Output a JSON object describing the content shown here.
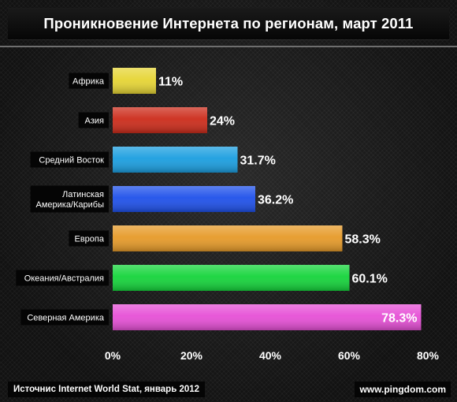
{
  "chart_data": {
    "type": "bar",
    "orientation": "horizontal",
    "title": "Проникновение Интернета по регионам, март 2011",
    "categories": [
      "Африка",
      "Азия",
      "Средний Восток",
      "Латинская Америка/Карибы",
      "Европа",
      "Океания/Австралия",
      "Северная Америка"
    ],
    "category_lines": [
      [
        "Африка"
      ],
      [
        "Азия"
      ],
      [
        "Средний Восток"
      ],
      [
        "Латинская",
        "Америка/Карибы"
      ],
      [
        "Европа"
      ],
      [
        "Океания/Австралия"
      ],
      [
        "Северная Америка"
      ]
    ],
    "values": [
      11,
      24,
      31.7,
      36.2,
      58.3,
      60.1,
      78.3
    ],
    "value_labels": [
      "11%",
      "24%",
      "31.7%",
      "36.2%",
      "58.3%",
      "60.1%",
      "78.3%"
    ],
    "bar_colors": [
      "#e6d534",
      "#cc2b1a",
      "#1a9ee0",
      "#1e50ea",
      "#e69a28",
      "#14d43a",
      "#e64fd6"
    ],
    "xlim": [
      0,
      80
    ],
    "xticks": [
      0,
      20,
      40,
      60,
      80
    ],
    "xtick_labels": [
      "0%",
      "20%",
      "40%",
      "60%",
      "80%"
    ],
    "grid": false,
    "legend": "none"
  },
  "footer": {
    "source": "Источнис Internet World Stat, январь 2012",
    "brand": "www.pingdom.com"
  }
}
